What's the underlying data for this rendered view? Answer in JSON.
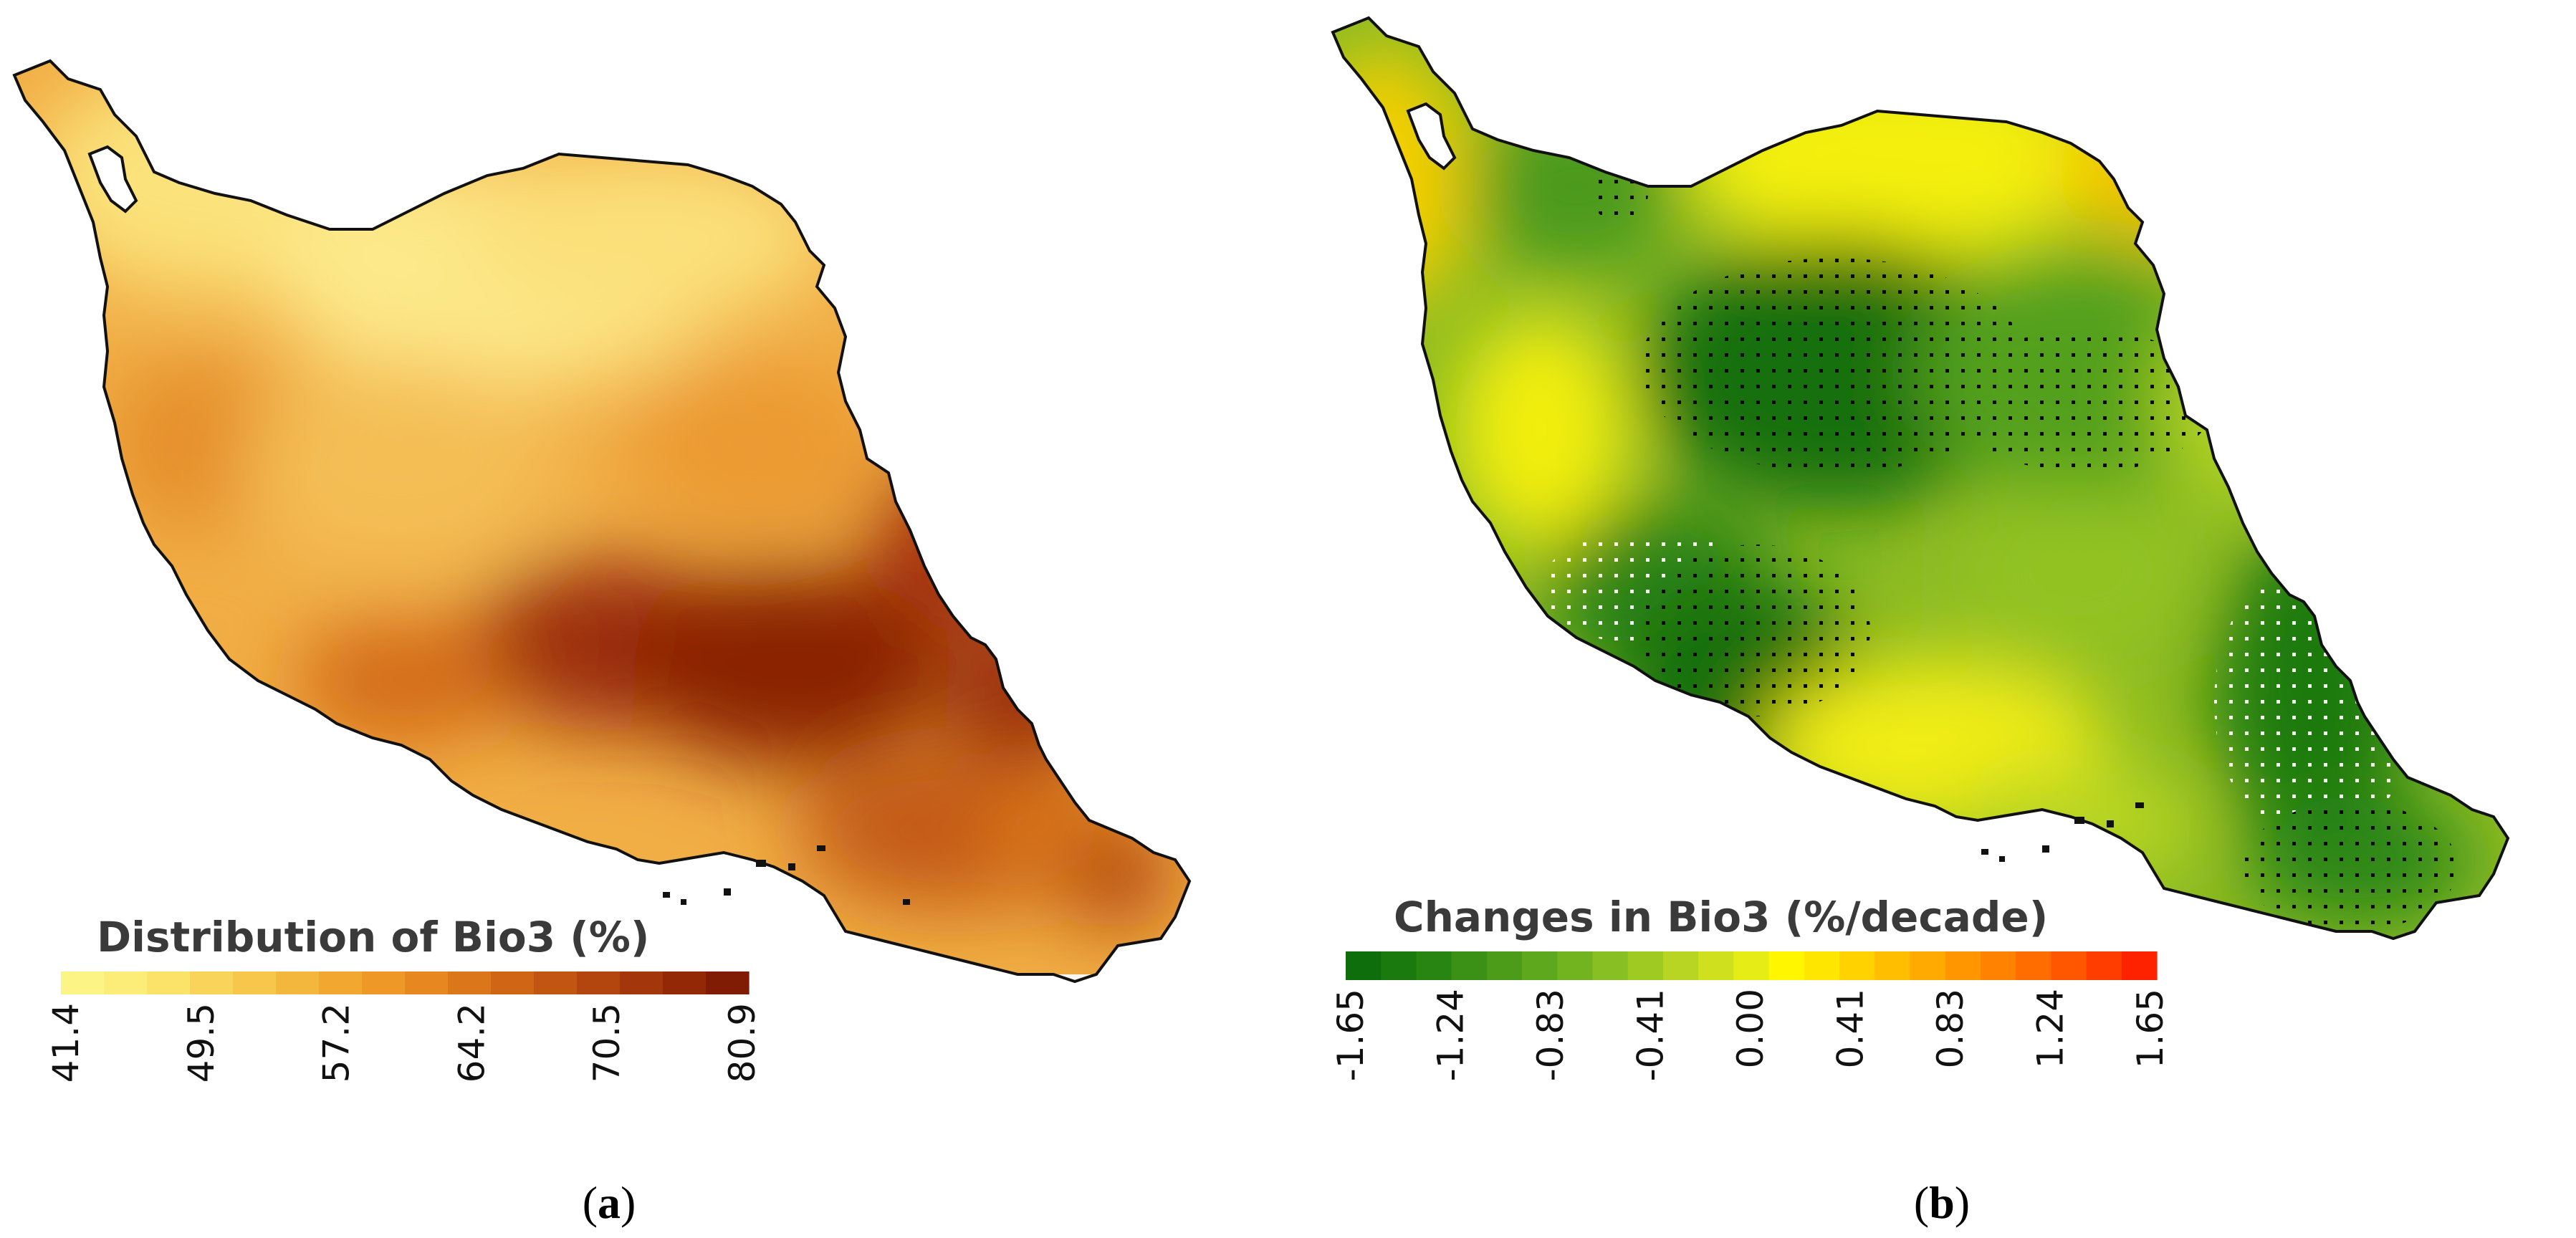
{
  "panels": [
    {
      "id": "a",
      "label_open": "(",
      "label_letter": "a",
      "label_close": ")",
      "legend_title": "Distribution of Bio3 (%)",
      "ticks": [
        "41.4",
        "49.5",
        "57.2",
        "64.2",
        "70.5",
        "80.9"
      ],
      "colors": [
        "#fdf486",
        "#fcec78",
        "#fbe268",
        "#f9d45a",
        "#f7c74b",
        "#f4b73d",
        "#f2a731",
        "#ee9828",
        "#e68720",
        "#dc761b",
        "#d06516",
        "#c25512",
        "#b3450e",
        "#a3360a",
        "#922806",
        "#801c03"
      ]
    },
    {
      "id": "b",
      "label_open": "(",
      "label_letter": "b",
      "label_close": ")",
      "legend_title": "Changes in Bio3 (%/decade)",
      "ticks": [
        "-1.65",
        "-1.24",
        "-0.83",
        "-0.41",
        "0.00",
        "0.41",
        "0.83",
        "1.24",
        "1.65"
      ],
      "colors": [
        "#0d6e0b",
        "#1a7a0e",
        "#298512",
        "#3a9116",
        "#4c9c1a",
        "#5ea81d",
        "#72b320",
        "#88bf22",
        "#9fca22",
        "#b7d522",
        "#cfe01e",
        "#e6ec16",
        "#fff600",
        "#ffe600",
        "#ffd200",
        "#ffbe00",
        "#ffaa00",
        "#ff9600",
        "#ff8200",
        "#ff6c00",
        "#ff5600",
        "#ff3d00",
        "#ff2200"
      ]
    }
  ],
  "map_colors": {
    "a_base": "#f3b64a",
    "a_light": "#fde98a",
    "a_mid": "#e58a24",
    "a_dark": "#8b2106",
    "b_base": "#7fb32a",
    "b_light": "#e4ea1e",
    "b_yellow": "#fff200",
    "b_dark": "#1f7a10",
    "b_orange": "#ffb400",
    "border": "#111111",
    "stipple_dark": "#000000",
    "stipple_light": "#ffffff"
  }
}
